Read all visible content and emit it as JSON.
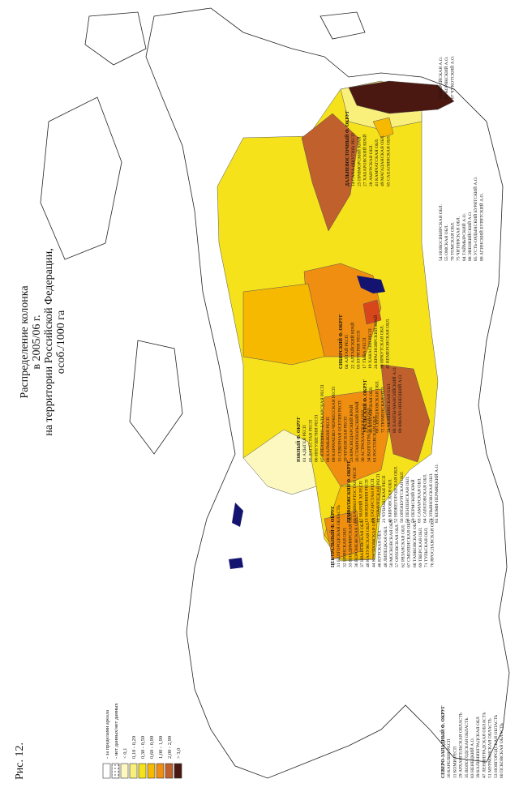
{
  "figure": {
    "label": "Рис. 12.",
    "title_lines": [
      "Распределение колонка",
      "в 2005/06 г.",
      "на территории Российской Федерации,",
      "особ./1000 га"
    ]
  },
  "legend": [
    {
      "label": "- за пределами ареала",
      "color": "#ffffff"
    },
    {
      "label": "- нет данных/нет данных",
      "color": "#ffffff",
      "pattern": "dotted"
    },
    {
      "label": "< 0,1",
      "color": "#fdf8c0"
    },
    {
      "label": "0,10 - 0,29",
      "color": "#f8f07a"
    },
    {
      "label": "0,30 - 0,59",
      "color": "#f6e21a"
    },
    {
      "label": "0,60 - 0,99",
      "color": "#f7b800"
    },
    {
      "label": "1,00 - 1,99",
      "color": "#ef8e10"
    },
    {
      "label": "2,00 - 2,99",
      "color": "#c0602c"
    },
    {
      "label": "> 3,0",
      "color": "#4a1810"
    }
  ],
  "districts": [
    {
      "name": "СЕВЕРО-ЗАПАДНЫЙ Ф. ОКРУГ",
      "regions": [
        "10 КАРЕЛИЯ РЕСП",
        "11 КОМИ РЕСП",
        "29 АРХАНГЕЛЬСКАЯ ОБЛАСТЬ",
        "35 ВОЛОГОДСКАЯ ОБЛАСТЬ",
        "83 НЕНЕЦКИЙ А.О.",
        "39 КАЛИНИНГРАДСКАЯ ОБЛ",
        "47 ЛЕНИНГРАДСКАЯ ОБЛАСТЬ",
        "51 МУРМАНСКАЯ ОБЛАСТЬ",
        "53 НОВГОРОДСКАЯ ОБЛАСТЬ",
        "60 ПСКОВСКАЯ ОБЛАСТЬ"
      ]
    },
    {
      "name": "ЦЕНТРАЛЬНЫЙ Ф. ОКРУГ",
      "regions": [
        "31 БЕЛГОРОДСКАЯ ОБЛАСТЬ",
        "32 БРЯНСКАЯ ОБЛ.",
        "33 ВЛАДИМИРСКАЯ ОБЛ.",
        "36 ВОРОНЕЖСКАЯ ОБЛ.",
        "37 ИВАНОВСКАЯ ОБЛ.",
        "40 КАЛУЖСКАЯ ОБЛ.",
        "44 КОСТРОМСКАЯ ОБЛ.",
        "46 КУРСКАЯ ОБЛ.",
        "48 ЛИПЕЦКАЯ ОБЛ.",
        "50 МОСКОВСКАЯ ОБЛ.",
        "57 ОРЛОВСКАЯ ОБЛ.",
        "62 РЯЗАНСКАЯ ОБЛ.",
        "67 СМОЛЕНСКАЯ ОБЛ.",
        "68 ТАМБОВСКАЯ ОБЛ.",
        "69 ТВЕРСКАЯ ОБЛ.",
        "71 ТУЛЬСКАЯ ОБЛ.",
        "76 ЯРОСЛАВСКАЯ ОБЛ."
      ]
    },
    {
      "name": "ПРИВОЛЖСКИЙ Ф. ОКРУГ",
      "regions": [
        "02 БАШКОРТОСТАН РЕСП",
        "12 МАРИЙ ЭЛ РЕСП",
        "13 МОРДОВИЯ РЕСП",
        "16 ТАТАРСТАН РЕСП",
        "18 УДМУРТСКАЯ РЕСП",
        "21 ЧУВАШСКАЯ РЕСП",
        "43 КИРОВСКАЯ ОБЛ.",
        "52 НИЖЕГОРОДСКАЯ ОБЛ.",
        "56 ОРЕНБУРГСКАЯ ОБЛ.",
        "58 ПЕНЗЕНСКАЯ ОБЛ.",
        "59 ПЕРМСКИЙ КРАЙ",
        "63 САМАРСКАЯ ОБЛ.",
        "64 САРАТОВСКАЯ ОБЛ.",
        "73 УЛЬЯНОВСКАЯ ОБЛ.",
        "81 КОМИ-ПЕРМЯЦКИЙ А.О."
      ]
    },
    {
      "name": "ЮЖНЫЙ Ф. ОКРУГ",
      "regions": [
        "01 АДЫГЕЯ РЕСП",
        "05 ДАГЕСТАН РЕСП",
        "06 ИНГУШЕТИЯ РЕСП",
        "07 КАБАРДИНО-БАЛКАРСКАЯ РЕСП",
        "08 КАЛМЫКИЯ РЕСП",
        "09 КАРАЧАЕВО-ЧЕРКЕССКАЯ РЕСП",
        "15 СЕВЕРНАЯ ОСЕТИЯ РЕСП",
        "20 ЧЕЧЕНСКАЯ РЕСП",
        "23 КРАСНОДАРСКИЙ КРАЙ",
        "26 СТАВРОПОЛЬСКИЙ КРАЙ",
        "30 АСТРАХАНСКАЯ ОБЛ.",
        "34 ВОЛГОГРАДСКАЯ ОБЛ.",
        "61 РОСТОВСКАЯ ОБЛ."
      ]
    },
    {
      "name": "УРАЛЬСКИЙ Ф. ОКРУГ",
      "regions": [
        "45 КУРГАНСКАЯ ОБЛ.",
        "66 СВЕРДЛОВСКАЯ ОБЛ.",
        "72 ТЮМЕНСКАЯ ОБЛ.",
        "74 ЧЕЛЯБИНСКАЯ ОБЛ.",
        "86 ХАНТЫ-МАНСИЙСКИЙ А.О.",
        "89 ЯМАЛО-НЕНЕЦКИЙ А.О."
      ]
    },
    {
      "name": "СИБИРСКИЙ Ф. ОКРУГ",
      "regions": [
        "04 АЛТАЙ РЕСП",
        "22 АЛТАЙСКИЙ КРАЙ",
        "03 БУРЯТИЯ РЕСП",
        "17 ТЫВА РЕСП",
        "19 ХАКАСИЯ РЕСП",
        "24 КРАСНОЯРСКИЙ КРАЙ",
        "38 ИРКУТСКАЯ ОБЛ.",
        "42 КЕМЕРОВСКАЯ ОБЛ.",
        "54 НОВОСИБИРСКАЯ ОБЛ.",
        "55 ОМСКАЯ ОБЛ.",
        "70 ТОМСКАЯ ОБЛ.",
        "75 ЧИТИНСКАЯ ОБЛ.",
        "84 ТАЙМЫРСКИЙ А.О.",
        "88 ЭВЕНКИЙСКИЙ А.О.",
        "85 УСТЬ-ОРДЫНСКИЙ БУРЯТСКИЙ А.О.",
        "80 АГИНСКИЙ БУРЯТСКИЙ А.О."
      ]
    },
    {
      "name": "ДАЛЬНЕВОСТОЧНЫЙ Ф. ОКРУГ",
      "regions": [
        "14 САХА (ЯКУТИЯ) РЕСП",
        "25 ПРИМОРСКИЙ КРАЙ",
        "27 ХАБАРОВСКИЙ КРАЙ",
        "28 АМУРСКАЯ ОБЛ.",
        "41 КАМЧАТСКАЯ ОБЛ.",
        "49 МАГАДАНСКАЯ ОБЛ.",
        "65 САХАЛИНСКАЯ ОБЛ.",
        "79 ЕВРЕЙСКАЯ А.О.",
        "82 КОРЯКСКИЙ А.О.",
        "87 ЧУКОТСКИЙ А.О."
      ]
    }
  ]
}
